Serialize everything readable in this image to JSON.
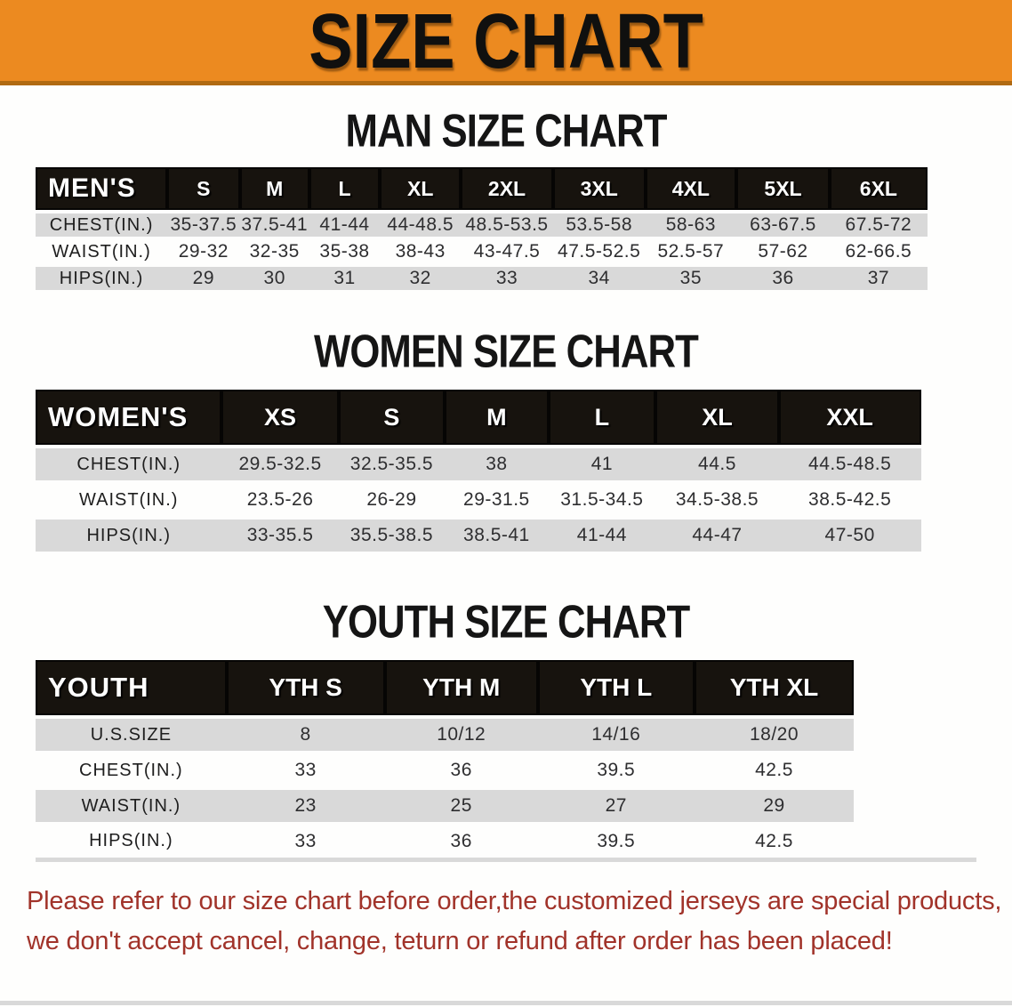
{
  "banner": {
    "title": "SIZE CHART"
  },
  "sections": [
    {
      "id": "men",
      "heading": "MAN SIZE CHART",
      "group_label": "MEN'S",
      "sizes": [
        "S",
        "M",
        "L",
        "XL",
        "2XL",
        "3XL",
        "4XL",
        "5XL",
        "6XL"
      ],
      "rows": [
        {
          "label": "CHEST(IN.)",
          "values": [
            "35-37.5",
            "37.5-41",
            "41-44",
            "44-48.5",
            "48.5-53.5",
            "53.5-58",
            "58-63",
            "63-67.5",
            "67.5-72"
          ]
        },
        {
          "label": "WAIST(IN.)",
          "values": [
            "29-32",
            "32-35",
            "35-38",
            "38-43",
            "43-47.5",
            "47.5-52.5",
            "52.5-57",
            "57-62",
            "62-66.5"
          ]
        },
        {
          "label": "HIPS(IN.)",
          "values": [
            "29",
            "30",
            "31",
            "32",
            "33",
            "34",
            "35",
            "36",
            "37"
          ]
        }
      ]
    },
    {
      "id": "women",
      "heading": "WOMEN SIZE CHART",
      "group_label": "WOMEN'S",
      "sizes": [
        "XS",
        "S",
        "M",
        "L",
        "XL",
        "XXL"
      ],
      "rows": [
        {
          "label": "CHEST(IN.)",
          "values": [
            "29.5-32.5",
            "32.5-35.5",
            "38",
            "41",
            "44.5",
            "44.5-48.5"
          ]
        },
        {
          "label": "WAIST(IN.)",
          "values": [
            "23.5-26",
            "26-29",
            "29-31.5",
            "31.5-34.5",
            "34.5-38.5",
            "38.5-42.5"
          ]
        },
        {
          "label": "HIPS(IN.)",
          "values": [
            "33-35.5",
            "35.5-38.5",
            "38.5-41",
            "41-44",
            "44-47",
            "47-50"
          ]
        }
      ]
    },
    {
      "id": "youth",
      "heading": "YOUTH SIZE CHART",
      "group_label": "YOUTH",
      "sizes": [
        "YTH S",
        "YTH M",
        "YTH L",
        "YTH XL"
      ],
      "rows": [
        {
          "label": "U.S.SIZE",
          "values": [
            "8",
            "10/12",
            "14/16",
            "18/20"
          ]
        },
        {
          "label": "CHEST(IN.)",
          "values": [
            "33",
            "36",
            "39.5",
            "42.5"
          ]
        },
        {
          "label": "WAIST(IN.)",
          "values": [
            "23",
            "25",
            "27",
            "29"
          ]
        },
        {
          "label": "HIPS(IN.)",
          "values": [
            "33",
            "36",
            "39.5",
            "42.5"
          ]
        }
      ]
    }
  ],
  "footer": {
    "line1": "Please refer to our size chart before order,the customized jerseys are special products,",
    "line2": "we don't accept cancel, change, teturn or refund after order has been placed!"
  },
  "colors": {
    "banner_orange": "#EC8A20",
    "banner_border": "#B06A12",
    "header_bar_black": "#17130E",
    "row_stripe_gray": "#D9D9D9",
    "table_text": "#2E2E30",
    "footer_red": "#A1332A",
    "bottom_strip_gray": "#D9D9D9"
  }
}
